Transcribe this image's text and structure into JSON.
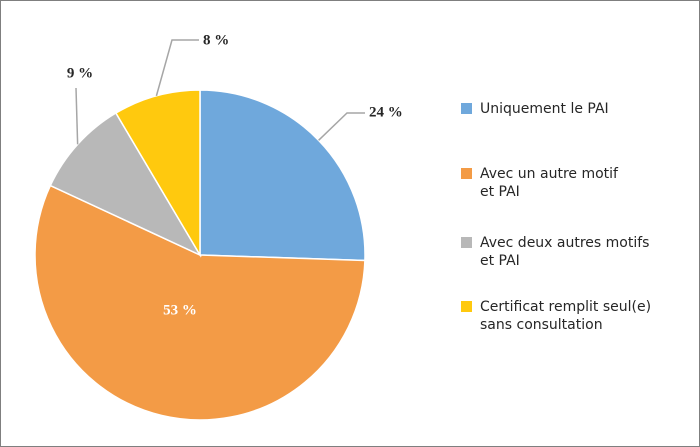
{
  "chart_data": {
    "type": "pie",
    "categories": [
      "Uniquement le PAI",
      "Avec un autre motif et PAI",
      "Avec deux autres motifs et PAI",
      "Certificat remplit seul(e) sans consultation"
    ],
    "values": [
      24,
      53,
      9,
      8
    ],
    "data_labels": [
      "24 %",
      "53 %",
      "9 %",
      "8 %"
    ],
    "colors": [
      "#6fa8dc",
      "#f39b46",
      "#b8b8b8",
      "#ffc90e"
    ],
    "legend_position": "right",
    "legend_lines": [
      [
        "Uniquement le PAI"
      ],
      [
        "Avec un autre motif",
        "et PAI"
      ],
      [
        "Avec deux autres motifs",
        "et PAI"
      ],
      [
        "Certificat remplit seul(e)",
        "sans consultation"
      ]
    ]
  }
}
